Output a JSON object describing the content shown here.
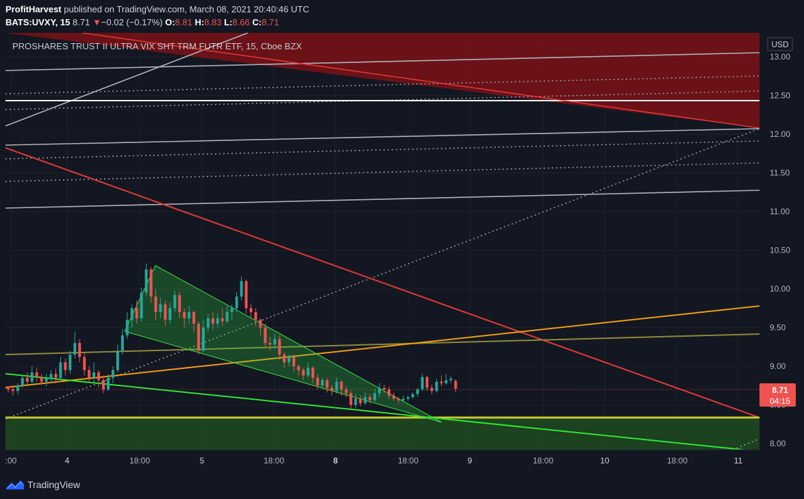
{
  "header": {
    "author": "ProfitHarvest",
    "published": "published on TradingView.com, March 08, 2021 20:40:46 UTC",
    "symbol": "BATS:UVXY, 15",
    "last": "8.71",
    "change_arrow": "▼",
    "change": "−0.02 (−0.17%)",
    "o_label": "O:",
    "o_value": "8.81",
    "h_label": "H:",
    "h_value": "8.83",
    "l_label": "L:",
    "l_value": "8.66",
    "c_label": "C:",
    "c_value": "8.71"
  },
  "branding": {
    "name": "TradingView",
    "icon": "tradingview-logo-icon"
  },
  "colors": {
    "background": "#131722",
    "up": "#26a69a",
    "down": "#ef5350",
    "trend_red": "#e53935",
    "zone_red": "#7a1216",
    "green_line": "#2ee62e",
    "orange_line": "#f39c12",
    "olive_line": "#8d8a3b",
    "yellow_line": "#c8c832",
    "green_zone": "#1f4a1f"
  },
  "chart_data": {
    "type": "candlestick",
    "title": "PROSHARES TRUST II ULTRA VIX SHT TRM FUTR ETF, 15, Cboe BZX",
    "currency": "USD",
    "ylim": [
      7.94,
      13.3
    ],
    "y_ticks": [
      "13.00",
      "12.50",
      "12.00",
      "11.50",
      "11.00",
      "10.50",
      "10.00",
      "9.50",
      "9.00",
      "8.50",
      "8.00"
    ],
    "x_ticks": [
      ":00",
      "4",
      "18:00",
      "5",
      "18:00",
      "8",
      "18:00",
      "9",
      "18:00",
      "10",
      "18:00",
      "11"
    ],
    "last_price": "8.71",
    "countdown": "04:15",
    "candles": [
      [
        8.74,
        8.7,
        8.66,
        8.73
      ],
      [
        8.7,
        8.68,
        8.62,
        8.75
      ],
      [
        8.68,
        8.75,
        8.64,
        8.78
      ],
      [
        8.75,
        8.85,
        8.72,
        8.88
      ],
      [
        8.85,
        8.8,
        8.76,
        8.92
      ],
      [
        8.8,
        8.92,
        8.78,
        9.0
      ],
      [
        8.92,
        8.86,
        8.8,
        8.98
      ],
      [
        8.86,
        8.8,
        8.76,
        8.9
      ],
      [
        8.8,
        8.84,
        8.74,
        8.9
      ],
      [
        8.84,
        8.9,
        8.8,
        8.95
      ],
      [
        8.9,
        8.85,
        8.78,
        8.97
      ],
      [
        8.85,
        9.05,
        8.82,
        9.12
      ],
      [
        9.05,
        8.95,
        8.88,
        9.1
      ],
      [
        8.95,
        9.15,
        8.9,
        9.2
      ],
      [
        9.15,
        9.3,
        9.1,
        9.45
      ],
      [
        9.3,
        9.12,
        9.05,
        9.35
      ],
      [
        9.12,
        8.95,
        8.88,
        9.18
      ],
      [
        8.95,
        8.85,
        8.8,
        9.0
      ],
      [
        8.85,
        8.92,
        8.78,
        9.05
      ],
      [
        8.92,
        8.82,
        8.72,
        8.95
      ],
      [
        8.82,
        8.7,
        8.65,
        8.88
      ],
      [
        8.7,
        8.85,
        8.68,
        8.9
      ],
      [
        8.85,
        8.95,
        8.78,
        9.0
      ],
      [
        8.95,
        9.2,
        8.92,
        9.28
      ],
      [
        9.2,
        9.4,
        9.15,
        9.48
      ],
      [
        9.4,
        9.6,
        9.35,
        9.7
      ],
      [
        9.6,
        9.75,
        9.5,
        9.8
      ],
      [
        9.75,
        9.62,
        9.55,
        9.85
      ],
      [
        9.62,
        9.95,
        9.58,
        10.02
      ],
      [
        9.95,
        10.25,
        9.9,
        10.33
      ],
      [
        10.25,
        9.9,
        9.82,
        10.28
      ],
      [
        9.9,
        9.7,
        9.6,
        10.0
      ],
      [
        9.7,
        9.8,
        9.62,
        9.88
      ],
      [
        9.8,
        9.6,
        9.52,
        9.85
      ],
      [
        9.6,
        9.75,
        9.55,
        9.82
      ],
      [
        9.75,
        9.92,
        9.7,
        9.98
      ],
      [
        9.92,
        9.7,
        9.62,
        9.96
      ],
      [
        9.7,
        9.62,
        9.5,
        9.75
      ],
      [
        9.62,
        9.7,
        9.55,
        9.78
      ],
      [
        9.7,
        9.55,
        9.45,
        9.72
      ],
      [
        9.55,
        9.2,
        9.15,
        9.58
      ],
      [
        9.2,
        9.5,
        9.18,
        9.6
      ],
      [
        9.5,
        9.62,
        9.45,
        9.68
      ],
      [
        9.62,
        9.55,
        9.48,
        9.7
      ],
      [
        9.55,
        9.62,
        9.5,
        9.68
      ],
      [
        9.62,
        9.58,
        9.52,
        9.75
      ],
      [
        9.58,
        9.7,
        9.55,
        9.78
      ],
      [
        9.7,
        9.75,
        9.6,
        9.8
      ],
      [
        9.75,
        9.9,
        9.7,
        9.96
      ],
      [
        9.9,
        10.1,
        9.85,
        10.16
      ],
      [
        10.1,
        9.75,
        9.68,
        10.12
      ],
      [
        9.75,
        9.7,
        9.62,
        9.8
      ],
      [
        9.7,
        9.6,
        9.52,
        9.75
      ],
      [
        9.6,
        9.5,
        9.4,
        9.62
      ],
      [
        9.5,
        9.3,
        9.25,
        9.55
      ],
      [
        9.3,
        9.28,
        9.2,
        9.38
      ],
      [
        9.28,
        9.35,
        9.22,
        9.42
      ],
      [
        9.35,
        9.15,
        9.08,
        9.4
      ],
      [
        9.15,
        9.05,
        8.98,
        9.18
      ],
      [
        9.05,
        9.12,
        9.0,
        9.15
      ],
      [
        9.12,
        9.0,
        8.92,
        9.15
      ],
      [
        9.0,
        8.95,
        8.88,
        9.02
      ],
      [
        8.95,
        8.88,
        8.82,
        8.98
      ],
      [
        8.88,
        8.98,
        8.85,
        9.05
      ],
      [
        8.98,
        8.85,
        8.78,
        9.0
      ],
      [
        8.85,
        8.75,
        8.7,
        8.9
      ],
      [
        8.75,
        8.82,
        8.72,
        8.85
      ],
      [
        8.82,
        8.72,
        8.66,
        8.85
      ],
      [
        8.72,
        8.68,
        8.62,
        8.76
      ],
      [
        8.68,
        8.8,
        8.65,
        8.85
      ],
      [
        8.8,
        8.7,
        8.62,
        8.82
      ],
      [
        8.7,
        8.65,
        8.6,
        8.74
      ],
      [
        8.65,
        8.5,
        8.44,
        8.68
      ],
      [
        8.5,
        8.58,
        8.46,
        8.64
      ],
      [
        8.58,
        8.52,
        8.48,
        8.62
      ],
      [
        8.52,
        8.6,
        8.5,
        8.66
      ],
      [
        8.6,
        8.56,
        8.52,
        8.64
      ],
      [
        8.56,
        8.65,
        8.54,
        8.7
      ],
      [
        8.65,
        8.72,
        8.6,
        8.78
      ],
      [
        8.72,
        8.7,
        8.65,
        8.76
      ],
      [
        8.7,
        8.62,
        8.58,
        8.74
      ],
      [
        8.62,
        8.58,
        8.55,
        8.66
      ],
      [
        8.58,
        8.56,
        8.52,
        8.6
      ],
      [
        8.56,
        8.58,
        8.54,
        8.62
      ],
      [
        8.58,
        8.6,
        8.55,
        8.62
      ],
      [
        8.6,
        8.64,
        8.58,
        8.66
      ],
      [
        8.64,
        8.7,
        8.6,
        8.72
      ],
      [
        8.7,
        8.86,
        8.68,
        8.9
      ],
      [
        8.86,
        8.72,
        8.68,
        8.88
      ],
      [
        8.72,
        8.68,
        8.64,
        8.76
      ],
      [
        8.68,
        8.8,
        8.66,
        8.84
      ],
      [
        8.8,
        8.78,
        8.74,
        8.88
      ],
      [
        8.78,
        8.82,
        8.76,
        8.9
      ],
      [
        8.82,
        8.84,
        8.78,
        8.88
      ],
      [
        8.81,
        8.71,
        8.66,
        8.83
      ]
    ],
    "horizontal_levels": [
      {
        "name": "white-level",
        "price": 12.43
      },
      {
        "name": "yellow-level",
        "price": 8.34
      }
    ]
  }
}
